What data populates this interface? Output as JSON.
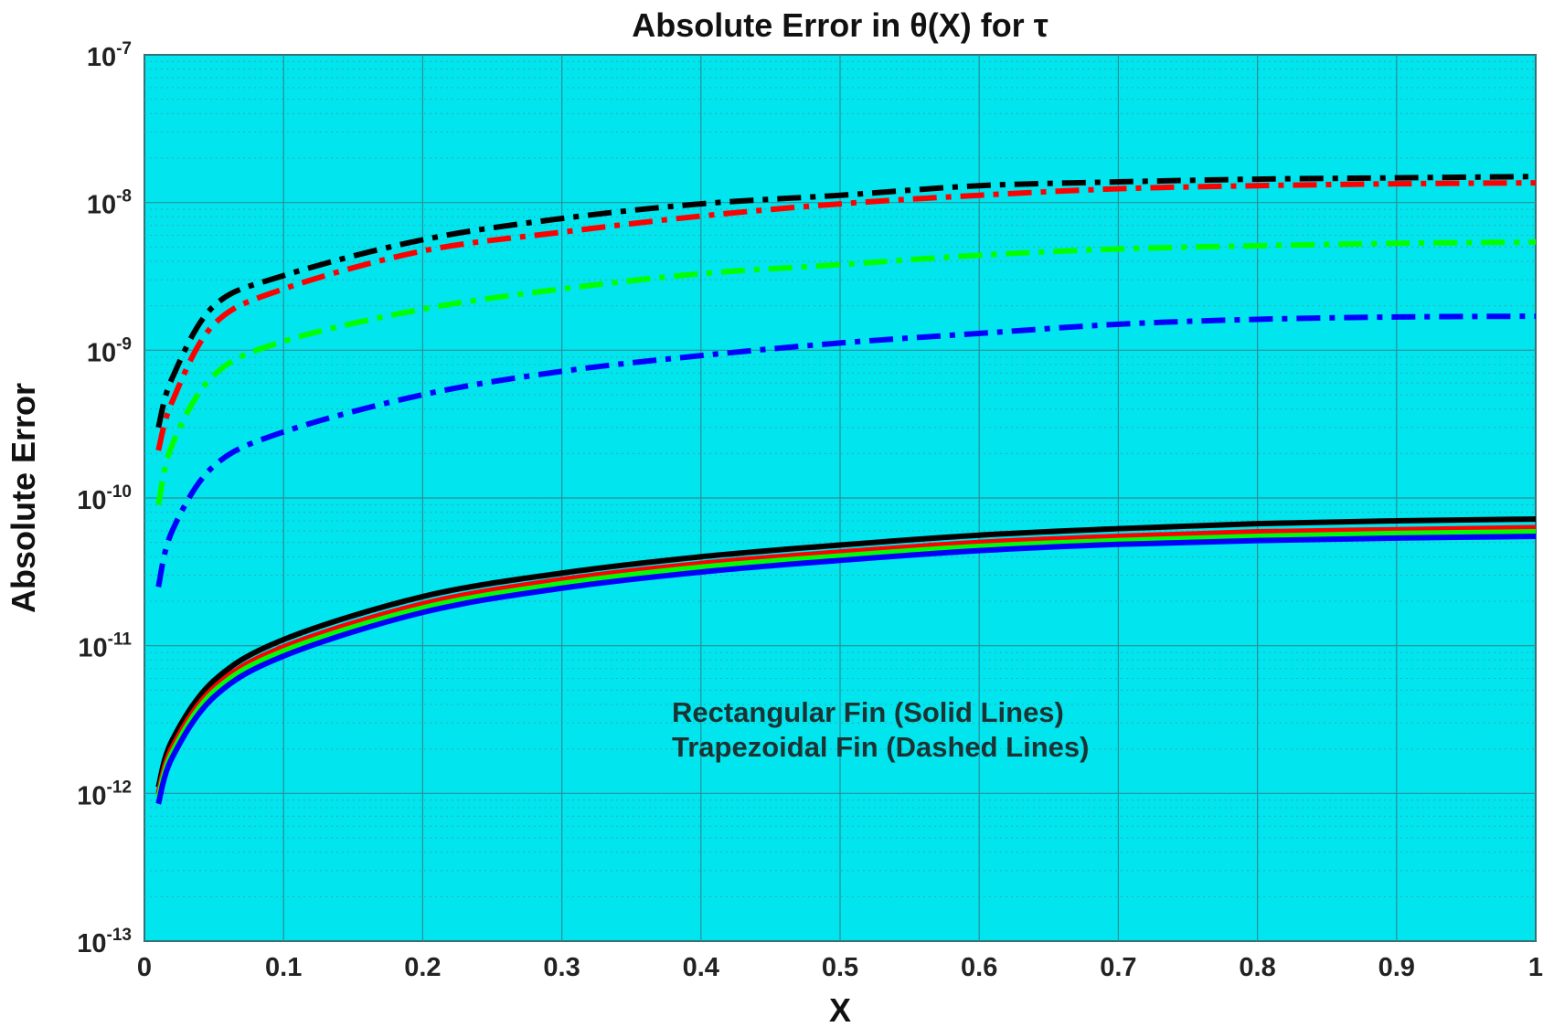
{
  "chart_data": {
    "type": "line",
    "title": "Absolute Error in θ(X) for τ",
    "xlabel": "X",
    "ylabel": "Absolute Error",
    "xlim": [
      0,
      1
    ],
    "ylim": [
      1e-13,
      1e-07
    ],
    "yscale": "log",
    "grid": true,
    "background_color": "#00e5ee",
    "x_ticks": [
      "0",
      "0.1",
      "0.2",
      "0.3",
      "0.4",
      "0.5",
      "0.6",
      "0.7",
      "0.8",
      "0.9",
      "1"
    ],
    "y_tick_exponents": [
      "-13",
      "-12",
      "-11",
      "-10",
      "-9",
      "-8",
      "-7"
    ],
    "y_tick_base": "10",
    "annotations": [
      "Rectangular Fin (Solid Lines)",
      "Trapezoidal Fin (Dashed Lines)"
    ],
    "series": [
      {
        "color": "#000000",
        "style": "dashed",
        "x": [
          0.01,
          0.02,
          0.05,
          0.1,
          0.2,
          0.3,
          0.4,
          0.5,
          0.6,
          0.7,
          0.8,
          0.9,
          1.0
        ],
        "y": [
          3e-10,
          6.5e-10,
          2e-09,
          3.2e-09,
          5.6e-09,
          7.8e-09,
          9.8e-09,
          1.12e-08,
          1.3e-08,
          1.38e-08,
          1.44e-08,
          1.47e-08,
          1.5e-08
        ]
      },
      {
        "color": "#ff0000",
        "style": "dashed",
        "x": [
          0.01,
          0.02,
          0.05,
          0.1,
          0.2,
          0.3,
          0.4,
          0.5,
          0.6,
          0.7,
          0.8,
          0.9,
          1.0
        ],
        "y": [
          2.1e-10,
          4.5e-10,
          1.5e-09,
          2.6e-09,
          4.7e-09,
          6.3e-09,
          8.1e-09,
          9.8e-09,
          1.12e-08,
          1.24e-08,
          1.3e-08,
          1.34e-08,
          1.36e-08
        ]
      },
      {
        "color": "#00ff00",
        "style": "dashed",
        "x": [
          0.01,
          0.02,
          0.05,
          0.1,
          0.2,
          0.3,
          0.4,
          0.5,
          0.6,
          0.7,
          0.8,
          0.9,
          1.0
        ],
        "y": [
          9e-11,
          2.3e-10,
          6.8e-10,
          1.15e-09,
          1.9e-09,
          2.6e-09,
          3.3e-09,
          3.8e-09,
          4.4e-09,
          4.85e-09,
          5.1e-09,
          5.3e-09,
          5.4e-09
        ]
      },
      {
        "color": "#0000ff",
        "style": "dashed",
        "x": [
          0.01,
          0.02,
          0.05,
          0.1,
          0.2,
          0.3,
          0.4,
          0.5,
          0.6,
          0.7,
          0.8,
          0.9,
          1.0
        ],
        "y": [
          2.5e-11,
          6e-11,
          1.65e-10,
          2.8e-10,
          5e-10,
          7.2e-10,
          9.2e-10,
          1.12e-09,
          1.3e-09,
          1.5e-09,
          1.62e-09,
          1.68e-09,
          1.7e-09
        ]
      },
      {
        "color": "#000000",
        "style": "solid",
        "x": [
          0.01,
          0.02,
          0.05,
          0.1,
          0.2,
          0.3,
          0.4,
          0.5,
          0.6,
          0.7,
          0.8,
          0.9,
          1.0
        ],
        "y": [
          1.1e-12,
          2.3e-12,
          5.8e-12,
          1.1e-11,
          2.15e-11,
          3.1e-11,
          4e-11,
          4.8e-11,
          5.6e-11,
          6.2e-11,
          6.7e-11,
          7e-11,
          7.2e-11
        ]
      },
      {
        "color": "#ff0000",
        "style": "solid",
        "x": [
          0.01,
          0.02,
          0.05,
          0.1,
          0.2,
          0.3,
          0.4,
          0.5,
          0.6,
          0.7,
          0.8,
          0.9,
          1.0
        ],
        "y": [
          1e-12,
          2.05e-12,
          5.2e-12,
          9.8e-12,
          1.92e-11,
          2.8e-11,
          3.6e-11,
          4.3e-11,
          5e-11,
          5.5e-11,
          5.9e-11,
          6.1e-11,
          6.3e-11
        ]
      },
      {
        "color": "#00ff00",
        "style": "solid",
        "x": [
          0.01,
          0.02,
          0.05,
          0.1,
          0.2,
          0.3,
          0.4,
          0.5,
          0.6,
          0.7,
          0.8,
          0.9,
          1.0
        ],
        "y": [
          9.3e-13,
          1.9e-12,
          4.9e-12,
          9.2e-12,
          1.8e-11,
          2.63e-11,
          3.4e-11,
          4.05e-11,
          4.7e-11,
          5.15e-11,
          5.5e-11,
          5.75e-11,
          5.9e-11
        ]
      },
      {
        "color": "#0000ff",
        "style": "solid",
        "x": [
          0.01,
          0.02,
          0.05,
          0.1,
          0.2,
          0.3,
          0.4,
          0.5,
          0.6,
          0.7,
          0.8,
          0.9,
          1.0
        ],
        "y": [
          8.5e-13,
          1.75e-12,
          4.5e-12,
          8.5e-12,
          1.68e-11,
          2.45e-11,
          3.15e-11,
          3.78e-11,
          4.4e-11,
          4.85e-11,
          5.15e-11,
          5.35e-11,
          5.5e-11
        ]
      }
    ]
  }
}
